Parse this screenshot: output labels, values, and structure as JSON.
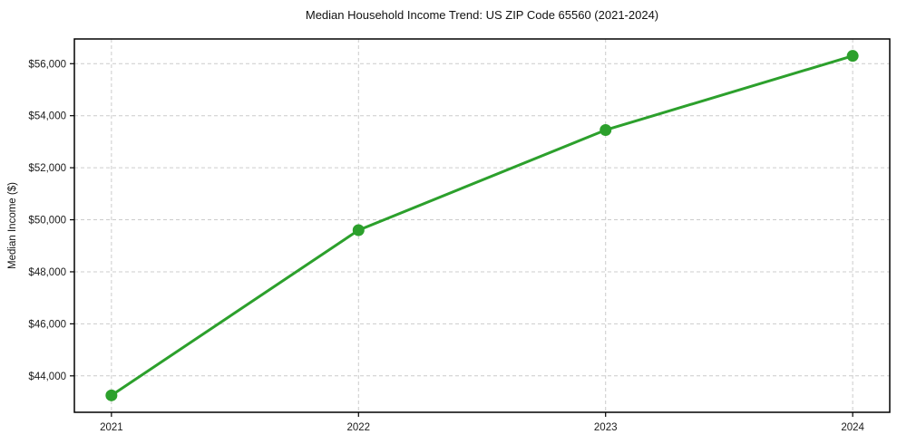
{
  "chart_data": {
    "type": "line",
    "title": "Median Household Income Trend: US ZIP Code 65560 (2021-2024)",
    "xlabel": "",
    "ylabel": "Median Income ($)",
    "x": [
      2021,
      2022,
      2023,
      2024
    ],
    "values": [
      43250,
      49600,
      53450,
      56300
    ],
    "xtick_values": [
      2021,
      2022,
      2023,
      2024
    ],
    "xtick_labels": [
      "2021",
      "2022",
      "2023",
      "2024"
    ],
    "ytick_values": [
      44000,
      46000,
      48000,
      50000,
      52000,
      54000,
      56000
    ],
    "ytick_labels": [
      "$44,000",
      "$46,000",
      "$48,000",
      "$50,000",
      "$52,000",
      "$54,000",
      "$56,000"
    ],
    "xlim": [
      2020.85,
      2024.15
    ],
    "ylim": [
      42600,
      56950
    ],
    "grid": true,
    "grid_style": "dashed",
    "legend": "none",
    "marker": "o",
    "colors": {
      "line": "#2ca02c",
      "marker": "#2ca02c",
      "grid": "#cccccc",
      "axis": "#000000",
      "text": "#1a1a1a",
      "background": "#ffffff"
    }
  }
}
